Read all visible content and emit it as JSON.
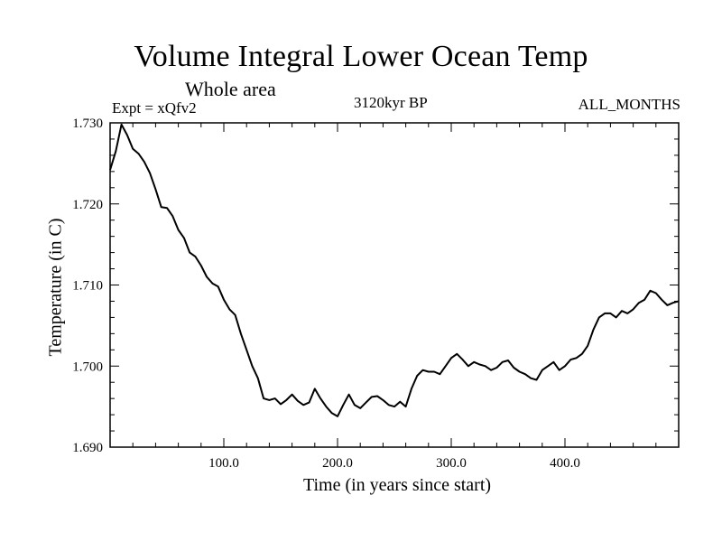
{
  "chart_data": {
    "type": "line",
    "title": "Volume Integral Lower Ocean Temp",
    "subtitle": "Whole area",
    "expt_label": "Expt = xQfv2",
    "center_label": "3120kyr BP",
    "right_label": "ALL_MONTHS",
    "xlabel": "Time (in years since start)",
    "ylabel": "Temperature (in C)",
    "xlim": [
      0,
      500
    ],
    "ylim": [
      1.69,
      1.73
    ],
    "xticks": [
      100,
      200,
      300,
      400
    ],
    "xtick_labels": [
      "100.0",
      "200.0",
      "300.0",
      "400.0"
    ],
    "yticks": [
      1.69,
      1.7,
      1.71,
      1.72,
      1.73
    ],
    "ytick_labels": [
      "1.690",
      "1.700",
      "1.710",
      "1.720",
      "1.730"
    ],
    "grid": false,
    "series": [
      {
        "name": "Temperature",
        "x": [
          0,
          5,
          10,
          15,
          20,
          25,
          30,
          35,
          40,
          45,
          50,
          55,
          60,
          65,
          70,
          75,
          80,
          85,
          90,
          95,
          100,
          105,
          110,
          115,
          120,
          125,
          130,
          135,
          140,
          145,
          150,
          155,
          160,
          165,
          170,
          175,
          180,
          185,
          190,
          195,
          200,
          205,
          210,
          215,
          220,
          225,
          230,
          235,
          240,
          245,
          250,
          255,
          260,
          265,
          270,
          275,
          280,
          285,
          290,
          295,
          300,
          305,
          310,
          315,
          320,
          325,
          330,
          335,
          340,
          345,
          350,
          355,
          360,
          365,
          370,
          375,
          380,
          385,
          390,
          395,
          400,
          405,
          410,
          415,
          420,
          425,
          430,
          435,
          440,
          445,
          450,
          455,
          460,
          465,
          470,
          475,
          480,
          485,
          490,
          495,
          500
        ],
        "values": [
          1.7242,
          1.7265,
          1.7298,
          1.7285,
          1.7268,
          1.7262,
          1.7252,
          1.7238,
          1.7218,
          1.7196,
          1.7195,
          1.7185,
          1.7168,
          1.7158,
          1.714,
          1.7135,
          1.7124,
          1.711,
          1.7102,
          1.7098,
          1.7082,
          1.707,
          1.7063,
          1.704,
          1.702,
          1.7,
          1.6985,
          1.696,
          1.6958,
          1.696,
          1.6953,
          1.6958,
          1.6965,
          1.6957,
          1.6952,
          1.6955,
          1.6972,
          1.696,
          1.695,
          1.6942,
          1.6938,
          1.6952,
          1.6965,
          1.6952,
          1.6948,
          1.6955,
          1.6962,
          1.6963,
          1.6958,
          1.6952,
          1.695,
          1.6956,
          1.695,
          1.6972,
          1.6988,
          1.6995,
          1.6993,
          1.6993,
          1.699,
          1.7,
          1.701,
          1.7015,
          1.7008,
          1.7,
          1.7005,
          1.7002,
          1.7,
          1.6995,
          1.6998,
          1.7005,
          1.7007,
          1.6998,
          1.6993,
          1.699,
          1.6985,
          1.6983,
          1.6995,
          1.7,
          1.7005,
          1.6995,
          1.7,
          1.7008,
          1.701,
          1.7015,
          1.7025,
          1.7045,
          1.706,
          1.7065,
          1.7065,
          1.706,
          1.7068,
          1.7065,
          1.707,
          1.7078,
          1.7082,
          1.7093,
          1.709,
          1.7082,
          1.7075,
          1.7078,
          1.708
        ]
      }
    ]
  }
}
